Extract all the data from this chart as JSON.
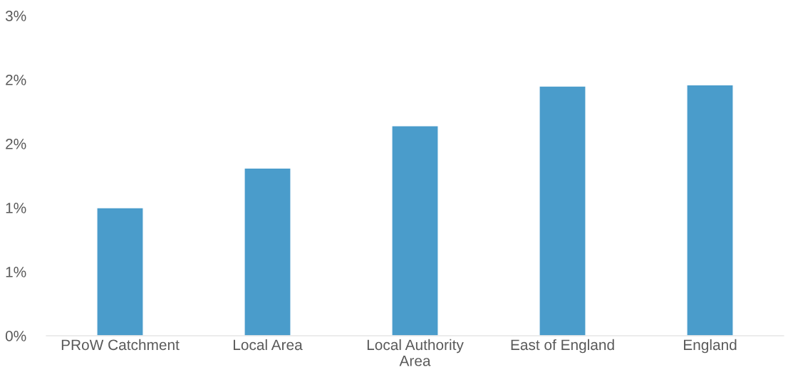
{
  "chart_data": {
    "type": "bar",
    "categories": [
      "PRoW Catchment",
      "Local Area",
      "Local Authority Area",
      "East of England",
      "England"
    ],
    "values": [
      1.0,
      1.31,
      1.64,
      1.95,
      1.96
    ],
    "color": "#4a9ccb",
    "ylim": [
      0,
      2.5
    ],
    "yticks": [
      {
        "value": 0,
        "label": "0%"
      },
      {
        "value": 0.5,
        "label": "1%"
      },
      {
        "value": 1,
        "label": "1%"
      },
      {
        "value": 1.5,
        "label": "2%"
      },
      {
        "value": 2,
        "label": "2%"
      },
      {
        "value": 2.5,
        "label": "3%"
      }
    ],
    "grid": false
  }
}
